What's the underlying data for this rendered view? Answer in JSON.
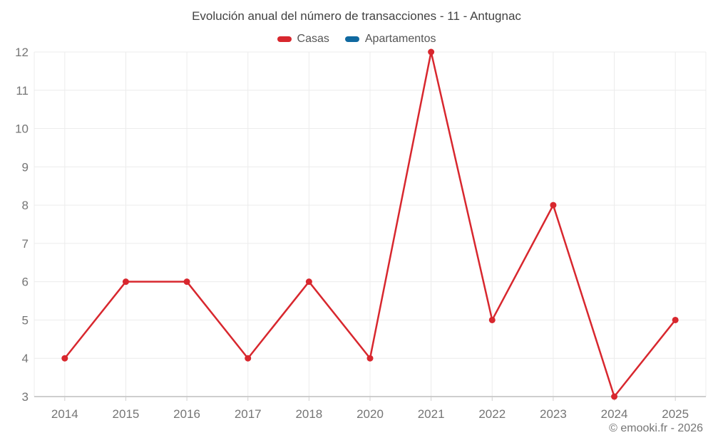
{
  "page": {
    "title": "Evolución anual del número de transacciones - 11 - Antugnac",
    "footer_credit": "© emooki.fr - 2026"
  },
  "chart_data": {
    "type": "line",
    "title": "Evolución anual del número de transacciones - 11 - Antugnac",
    "categories": [
      "2014",
      "2015",
      "2016",
      "2017",
      "2018",
      "2020",
      "2021",
      "2022",
      "2023",
      "2024",
      "2025"
    ],
    "series": [
      {
        "name": "Casas",
        "color": "#d8272e",
        "values": [
          4,
          6,
          6,
          4,
          6,
          4,
          12,
          5,
          8,
          3,
          5
        ]
      },
      {
        "name": "Apartamentos",
        "color": "#1069a0",
        "values": []
      }
    ],
    "xlabel": "",
    "ylabel": "",
    "ylim": [
      3,
      12
    ],
    "y_ticks": [
      3,
      4,
      5,
      6,
      7,
      8,
      9,
      10,
      11,
      12
    ],
    "grid": true,
    "legend_position": "top",
    "marker": "circle"
  },
  "colors": {
    "grid": "#ececec",
    "axis": "#9e9e9e",
    "tick": "#d0d0d0",
    "tick_label": "#757575",
    "title_text": "#424242",
    "legend_text": "#555555",
    "footer_text": "#757575"
  }
}
